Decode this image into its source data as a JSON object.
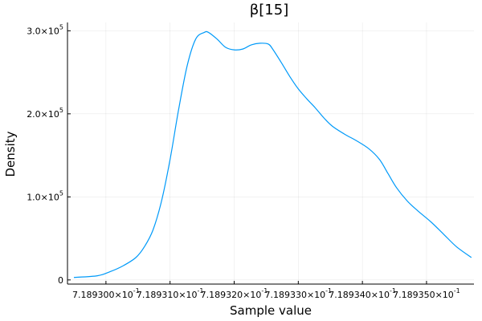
{
  "chart_data": {
    "type": "line",
    "title": "β[15]",
    "xlabel": "Sample value",
    "ylabel": "Density",
    "xlim": [
      0.7189294,
      0.71893574
    ],
    "ylim": [
      -5000,
      310000
    ],
    "grid": true,
    "legend": "none",
    "x_ticks": [
      {
        "value": 0.71893,
        "mantissa": "7.189300",
        "exponent": "-1"
      },
      {
        "value": 0.718931,
        "mantissa": "7.189310",
        "exponent": "-1"
      },
      {
        "value": 0.718932,
        "mantissa": "7.189320",
        "exponent": "-1"
      },
      {
        "value": 0.718933,
        "mantissa": "7.189330",
        "exponent": "-1"
      },
      {
        "value": 0.718934,
        "mantissa": "7.189340",
        "exponent": "-1"
      },
      {
        "value": 0.718935,
        "mantissa": "7.189350",
        "exponent": "-1"
      }
    ],
    "y_ticks": [
      {
        "value": 0,
        "mantissa": "0",
        "exponent": ""
      },
      {
        "value": 100000,
        "mantissa": "1.0",
        "exponent": "5"
      },
      {
        "value": 200000,
        "mantissa": "2.0",
        "exponent": "5"
      },
      {
        "value": 300000,
        "mantissa": "3.0",
        "exponent": "5"
      }
    ],
    "series": [
      {
        "color": "#009af9",
        "x": [
          0.7189295,
          0.718929867,
          0.718930067,
          0.718930267,
          0.718930467,
          0.7189306,
          0.718930733,
          0.718930867,
          0.718931,
          0.718931133,
          0.718931267,
          0.7189314,
          0.718931533,
          0.7189316,
          0.718931733,
          0.718931867,
          0.718932,
          0.718932133,
          0.718932267,
          0.7189324,
          0.718932533,
          0.7189326,
          0.718932733,
          0.718932867,
          0.718933,
          0.718933133,
          0.718933267,
          0.7189334,
          0.718933533,
          0.718933733,
          0.7189339,
          0.7189341,
          0.718934267,
          0.7189344,
          0.718934533,
          0.7189347,
          0.718934867,
          0.718935067,
          0.718935267,
          0.718935467,
          0.7189357
        ],
        "y": [
          3000,
          5000,
          10000,
          17000,
          27000,
          40000,
          60000,
          95000,
          145000,
          205000,
          258000,
          290000,
          298000,
          298000,
          290000,
          280000,
          277000,
          278000,
          283000,
          285000,
          284000,
          278000,
          262000,
          245000,
          230000,
          218000,
          207000,
          195000,
          185000,
          175000,
          168000,
          158000,
          145000,
          128000,
          111000,
          95000,
          83000,
          70000,
          55000,
          40000,
          27000
        ]
      }
    ]
  }
}
